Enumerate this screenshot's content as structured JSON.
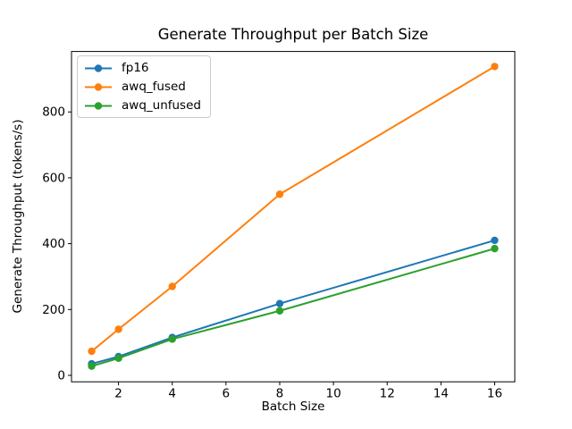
{
  "chart_data": {
    "type": "line",
    "title": "Generate Throughput per Batch Size",
    "xlabel": "Batch Size",
    "ylabel": "Generate Throughput (tokens/s)",
    "x": [
      1,
      2,
      4,
      8,
      16
    ],
    "series": [
      {
        "name": "fp16",
        "color": "#1f77b4",
        "values": [
          35,
          57,
          115,
          218,
          410
        ]
      },
      {
        "name": "awq_fused",
        "color": "#ff7f0e",
        "values": [
          73,
          140,
          270,
          550,
          938
        ]
      },
      {
        "name": "awq_unfused",
        "color": "#2ca02c",
        "values": [
          28,
          52,
          110,
          196,
          385
        ]
      }
    ],
    "xticks": [
      2,
      4,
      6,
      8,
      10,
      12,
      14,
      16
    ],
    "yticks": [
      0,
      200,
      400,
      600,
      800
    ],
    "xlim": [
      0.25,
      16.75
    ],
    "ylim": [
      -19.6,
      983.6
    ],
    "legend_position": "upper-left",
    "grid": false,
    "marker": "circle",
    "background_color": "#ffffff",
    "spine_color": "#000000"
  }
}
